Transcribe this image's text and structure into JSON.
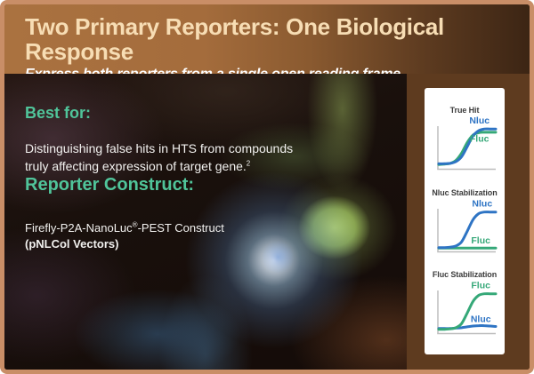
{
  "slide": {
    "header": {
      "title": "Two Primary Reporters: One Biological Response",
      "subtitle": "Express both reporters from a single open reading frame."
    },
    "best_for": {
      "heading": "Best for:",
      "line1": "Distinguishing false hits in HTS from compounds",
      "line2": "truly affecting expression of target gene.",
      "footnote_ref": "2"
    },
    "reporter": {
      "heading": "Reporter Construct:",
      "construct_pre": "Firefly-P2A-NanoLuc",
      "registered_mark": "®",
      "construct_post": "-PEST Construct",
      "vectors": "(pNLCol Vectors)"
    }
  },
  "colors": {
    "accent_green": "#50c49a",
    "nluc_blue": "#2e74c4",
    "fluc_green": "#35a878",
    "header_brown": "#a9713f",
    "sidebar_brown": "#5e3b1f",
    "border_tan": "#c98e67",
    "title_cream": "#f7ddb4",
    "axis_gray": "#bdbdbd"
  },
  "chart_data": [
    {
      "type": "line",
      "title": "True Hit",
      "xlabel": "",
      "ylabel": "",
      "x": [
        0,
        0.1,
        0.2,
        0.3,
        0.4,
        0.5,
        0.6,
        0.7,
        0.8,
        0.9,
        1.0
      ],
      "series": [
        {
          "name": "Fluc",
          "color": "#35a878",
          "values": [
            0.06,
            0.07,
            0.09,
            0.16,
            0.34,
            0.6,
            0.78,
            0.84,
            0.85,
            0.85,
            0.85
          ],
          "label": {
            "fx": 0.72,
            "fy": 0.46
          }
        },
        {
          "name": "Nluc",
          "color": "#2e74c4",
          "values": [
            0.08,
            0.08,
            0.09,
            0.13,
            0.25,
            0.5,
            0.76,
            0.89,
            0.93,
            0.93,
            0.93
          ],
          "label": {
            "fx": 0.72,
            "fy": 0.14
          }
        }
      ]
    },
    {
      "type": "line",
      "title": "Nluc Stabilization",
      "xlabel": "",
      "ylabel": "",
      "x": [
        0,
        0.1,
        0.2,
        0.3,
        0.4,
        0.5,
        0.6,
        0.7,
        0.8,
        0.9,
        1.0
      ],
      "series": [
        {
          "name": "Fluc",
          "color": "#35a878",
          "values": [
            0.04,
            0.04,
            0.04,
            0.04,
            0.04,
            0.04,
            0.04,
            0.04,
            0.04,
            0.04,
            0.04
          ],
          "label": {
            "fx": 0.74,
            "fy": 0.8
          }
        },
        {
          "name": "Nluc",
          "color": "#2e74c4",
          "values": [
            0.05,
            0.05,
            0.06,
            0.09,
            0.19,
            0.45,
            0.73,
            0.88,
            0.92,
            0.92,
            0.92
          ],
          "label": {
            "fx": 0.76,
            "fy": 0.15
          }
        }
      ]
    },
    {
      "type": "line",
      "title": "Fluc Stabilization",
      "xlabel": "",
      "ylabel": "",
      "x": [
        0,
        0.1,
        0.2,
        0.3,
        0.4,
        0.5,
        0.6,
        0.7,
        0.8,
        0.9,
        1.0
      ],
      "series": [
        {
          "name": "Nluc",
          "color": "#2e74c4",
          "values": [
            0.07,
            0.07,
            0.07,
            0.08,
            0.09,
            0.11,
            0.13,
            0.14,
            0.14,
            0.13,
            0.12
          ],
          "label": {
            "fx": 0.74,
            "fy": 0.74
          }
        },
        {
          "name": "Fluc",
          "color": "#35a878",
          "values": [
            0.05,
            0.05,
            0.06,
            0.09,
            0.19,
            0.45,
            0.73,
            0.88,
            0.92,
            0.92,
            0.92
          ],
          "label": {
            "fx": 0.74,
            "fy": 0.15
          }
        }
      ]
    }
  ]
}
